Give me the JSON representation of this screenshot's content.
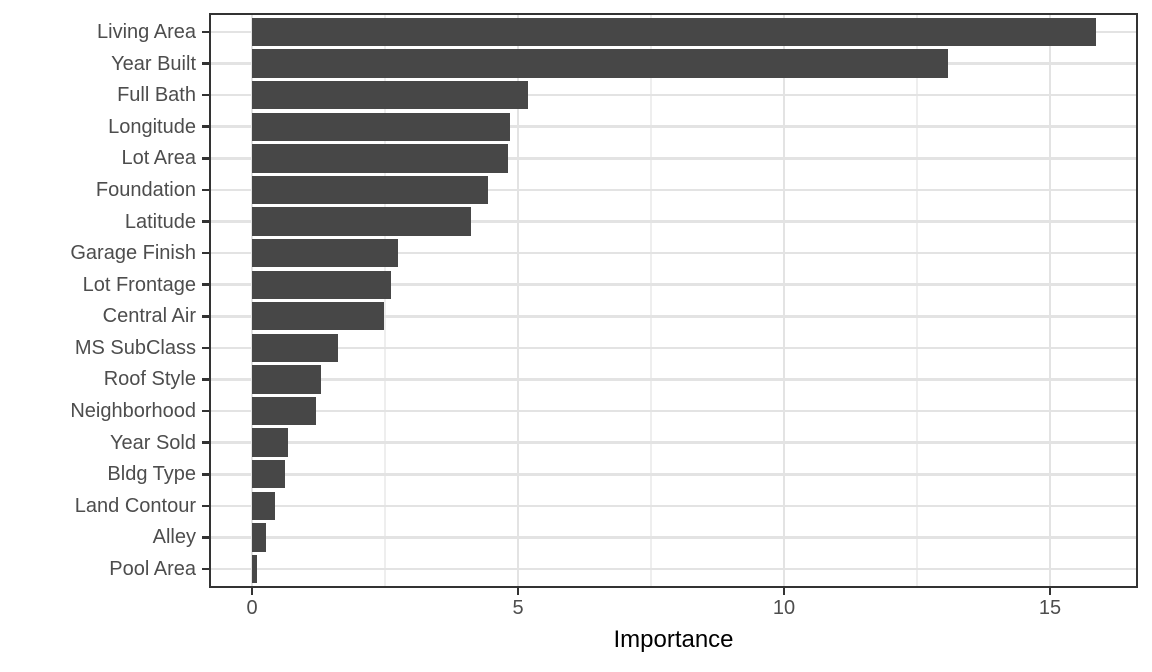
{
  "chart_data": {
    "type": "bar",
    "orientation": "horizontal",
    "title": "",
    "xlabel": "Importance",
    "ylabel": "",
    "categories": [
      "Living Area",
      "Year Built",
      "Full Bath",
      "Longitude",
      "Lot Area",
      "Foundation",
      "Latitude",
      "Garage Finish",
      "Lot Frontage",
      "Central Air",
      "MS SubClass",
      "Roof Style",
      "Neighborhood",
      "Year Sold",
      "Bldg Type",
      "Land Contour",
      "Alley",
      "Pool Area"
    ],
    "values": [
      15.87,
      13.08,
      5.19,
      4.85,
      4.81,
      4.44,
      4.12,
      2.74,
      2.61,
      2.48,
      1.62,
      1.3,
      1.2,
      0.67,
      0.62,
      0.43,
      0.26,
      0.09
    ],
    "xlim": [
      -0.79,
      16.65
    ],
    "xticks": [
      0,
      5,
      10,
      15
    ],
    "xticks_minor": [
      2.5,
      7.5,
      12.5
    ],
    "grid": true,
    "legend": false
  },
  "colors": {
    "bar_fill": "#474747",
    "panel_border": "#333333",
    "grid_major": "#e3e3e3",
    "grid_minor": "#eeeeee",
    "axis_text": "#4d4d4d",
    "axis_title": "#000000",
    "tick_mark": "#333333",
    "background": "#ffffff"
  }
}
